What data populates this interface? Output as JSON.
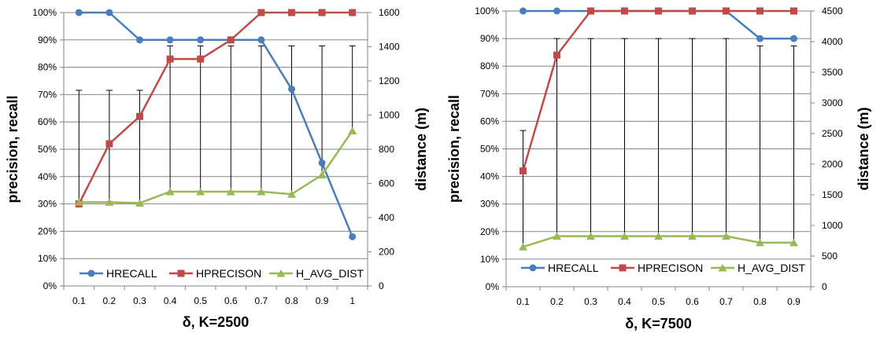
{
  "chart_data": [
    {
      "type": "line",
      "x": [
        "0.1",
        "0.2",
        "0.3",
        "0.4",
        "0.5",
        "0.6",
        "0.7",
        "0.8",
        "0.9",
        "1"
      ],
      "xlabel": "δ, K=2500",
      "ylabel": "precision, recall",
      "y2label": "distance (m)",
      "ylim": [
        0,
        100
      ],
      "yticks": [
        "0%",
        "10%",
        "20%",
        "30%",
        "40%",
        "50%",
        "60%",
        "70%",
        "80%",
        "90%",
        "100%"
      ],
      "y2lim": [
        0,
        1600
      ],
      "y2ticks": [
        "0",
        "200",
        "400",
        "600",
        "800",
        "1000",
        "1200",
        "1400",
        "1600"
      ],
      "grid": true,
      "legend_position": "bottom-inside",
      "series": [
        {
          "name": "HRECALL",
          "axis": "left",
          "color": "#4a7ebb",
          "marker": "circle",
          "values": [
            100,
            100,
            90,
            90,
            90,
            90,
            90,
            72,
            45,
            18
          ]
        },
        {
          "name": "HPRECISON",
          "axis": "left",
          "color": "#be4b48",
          "marker": "square",
          "values": [
            30,
            52,
            62,
            83,
            83,
            90,
            100,
            100,
            100,
            100
          ]
        },
        {
          "name": "H_AVG_DIST",
          "axis": "right",
          "color": "#98b954",
          "marker": "triangle",
          "values": [
            490,
            490,
            485,
            552,
            552,
            552,
            552,
            537,
            650,
            908
          ],
          "error_low": [
            490,
            490,
            485,
            552,
            552,
            552,
            552,
            537,
            650,
            908
          ],
          "error_high": [
            1145,
            1145,
            1145,
            1405,
            1405,
            1405,
            1405,
            1405,
            1405,
            1405
          ]
        }
      ]
    },
    {
      "type": "line",
      "x": [
        "0.1",
        "0.2",
        "0.3",
        "0.4",
        "0.5",
        "0.6",
        "0.7",
        "0.8",
        "0.9"
      ],
      "xlabel": "δ, K=7500",
      "ylabel": "precision, recall",
      "y2label": "distance (m)",
      "ylim": [
        0,
        100
      ],
      "yticks": [
        "0%",
        "10%",
        "20%",
        "30%",
        "40%",
        "50%",
        "60%",
        "70%",
        "80%",
        "90%",
        "100%"
      ],
      "y2lim": [
        0,
        4500
      ],
      "y2ticks": [
        "0",
        "500",
        "1000",
        "1500",
        "2000",
        "2500",
        "3000",
        "3500",
        "4000",
        "4500"
      ],
      "grid": true,
      "legend_position": "bottom-inside",
      "series": [
        {
          "name": "HRECALL",
          "axis": "left",
          "color": "#4a7ebb",
          "marker": "circle",
          "values": [
            100,
            100,
            100,
            100,
            100,
            100,
            100,
            90,
            90
          ]
        },
        {
          "name": "HPRECISON",
          "axis": "left",
          "color": "#be4b48",
          "marker": "square",
          "values": [
            42,
            84,
            100,
            100,
            100,
            100,
            100,
            100,
            100
          ]
        },
        {
          "name": "H_AVG_DIST",
          "axis": "right",
          "color": "#98b954",
          "marker": "triangle",
          "values": [
            650,
            825,
            825,
            825,
            825,
            825,
            825,
            720,
            720
          ],
          "error_low": [
            650,
            825,
            825,
            825,
            825,
            825,
            825,
            720,
            720
          ],
          "error_high": [
            2550,
            4050,
            4050,
            4050,
            4050,
            4050,
            4050,
            3930,
            3930
          ]
        }
      ]
    }
  ]
}
